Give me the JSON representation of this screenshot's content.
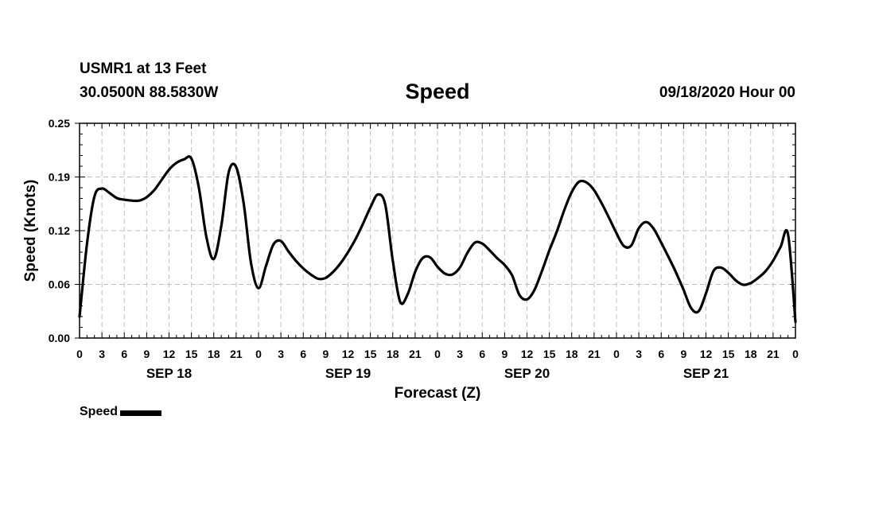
{
  "header": {
    "station": "USMR1 at 13 Feet",
    "coords": "30.0500N 88.5830W",
    "datetime": "09/18/2020 Hour 00"
  },
  "legend": {
    "label": "Speed"
  },
  "colors": {
    "line": "#000000",
    "grid": "#c0c0c0",
    "axis": "#000000"
  },
  "chart_data": {
    "type": "line",
    "title": "Speed",
    "xlabel": "Forecast (Z)",
    "ylabel": "Speed (Knots)",
    "ylim": [
      0,
      0.25
    ],
    "yticks": [
      "0.00",
      "0.06",
      "0.12",
      "0.19",
      "0.25"
    ],
    "xlim_hours": [
      0,
      96
    ],
    "xtick_step_hours": 3,
    "xtick_labels": [
      "0",
      "3",
      "6",
      "9",
      "12",
      "15",
      "18",
      "21",
      "0",
      "3",
      "6",
      "9",
      "12",
      "15",
      "18",
      "21",
      "0",
      "3",
      "6",
      "9",
      "12",
      "15",
      "18",
      "21",
      "0",
      "3",
      "6",
      "9",
      "12",
      "15",
      "18",
      "21",
      "0"
    ],
    "day_labels": [
      {
        "label": "SEP 18",
        "hour": 12
      },
      {
        "label": "SEP 19",
        "hour": 36
      },
      {
        "label": "SEP 20",
        "hour": 60
      },
      {
        "label": "SEP 21",
        "hour": 84
      }
    ],
    "grid": true,
    "legend_position": "bottom-left",
    "series": [
      {
        "name": "Speed",
        "hours": [
          0,
          1,
          2,
          3,
          4,
          5,
          6,
          7,
          8,
          9,
          10,
          11,
          12,
          13,
          14,
          15,
          16,
          17,
          18,
          19,
          20,
          21,
          22,
          23,
          24,
          25,
          26,
          27,
          28,
          29,
          30,
          31,
          32,
          33,
          34,
          35,
          36,
          37,
          38,
          39,
          40,
          41,
          42,
          43,
          44,
          45,
          46,
          47,
          48,
          49,
          50,
          51,
          52,
          53,
          54,
          55,
          56,
          57,
          58,
          59,
          60,
          61,
          62,
          63,
          64,
          65,
          66,
          67,
          68,
          69,
          70,
          71,
          72,
          73,
          74,
          75,
          76,
          77,
          78,
          79,
          80,
          81,
          82,
          83,
          84,
          85,
          86,
          87,
          88,
          89,
          90,
          91,
          92,
          93,
          94,
          95,
          96
        ],
        "values": [
          0.025,
          0.11,
          0.165,
          0.174,
          0.169,
          0.163,
          0.161,
          0.16,
          0.16,
          0.164,
          0.172,
          0.184,
          0.196,
          0.204,
          0.208,
          0.209,
          0.175,
          0.118,
          0.092,
          0.13,
          0.193,
          0.199,
          0.157,
          0.087,
          0.058,
          0.084,
          0.109,
          0.113,
          0.101,
          0.09,
          0.081,
          0.074,
          0.069,
          0.07,
          0.077,
          0.087,
          0.1,
          0.115,
          0.133,
          0.152,
          0.167,
          0.155,
          0.09,
          0.042,
          0.051,
          0.077,
          0.093,
          0.094,
          0.083,
          0.075,
          0.074,
          0.082,
          0.099,
          0.111,
          0.11,
          0.102,
          0.093,
          0.085,
          0.073,
          0.05,
          0.045,
          0.056,
          0.078,
          0.102,
          0.124,
          0.149,
          0.17,
          0.182,
          0.181,
          0.172,
          0.157,
          0.14,
          0.122,
          0.107,
          0.108,
          0.128,
          0.135,
          0.127,
          0.111,
          0.094,
          0.076,
          0.056,
          0.035,
          0.031,
          0.052,
          0.078,
          0.082,
          0.076,
          0.067,
          0.062,
          0.064,
          0.07,
          0.078,
          0.09,
          0.106,
          0.121,
          0.019
        ],
        "note_end": "series ends near 0.019 at hour 96"
      }
    ]
  }
}
